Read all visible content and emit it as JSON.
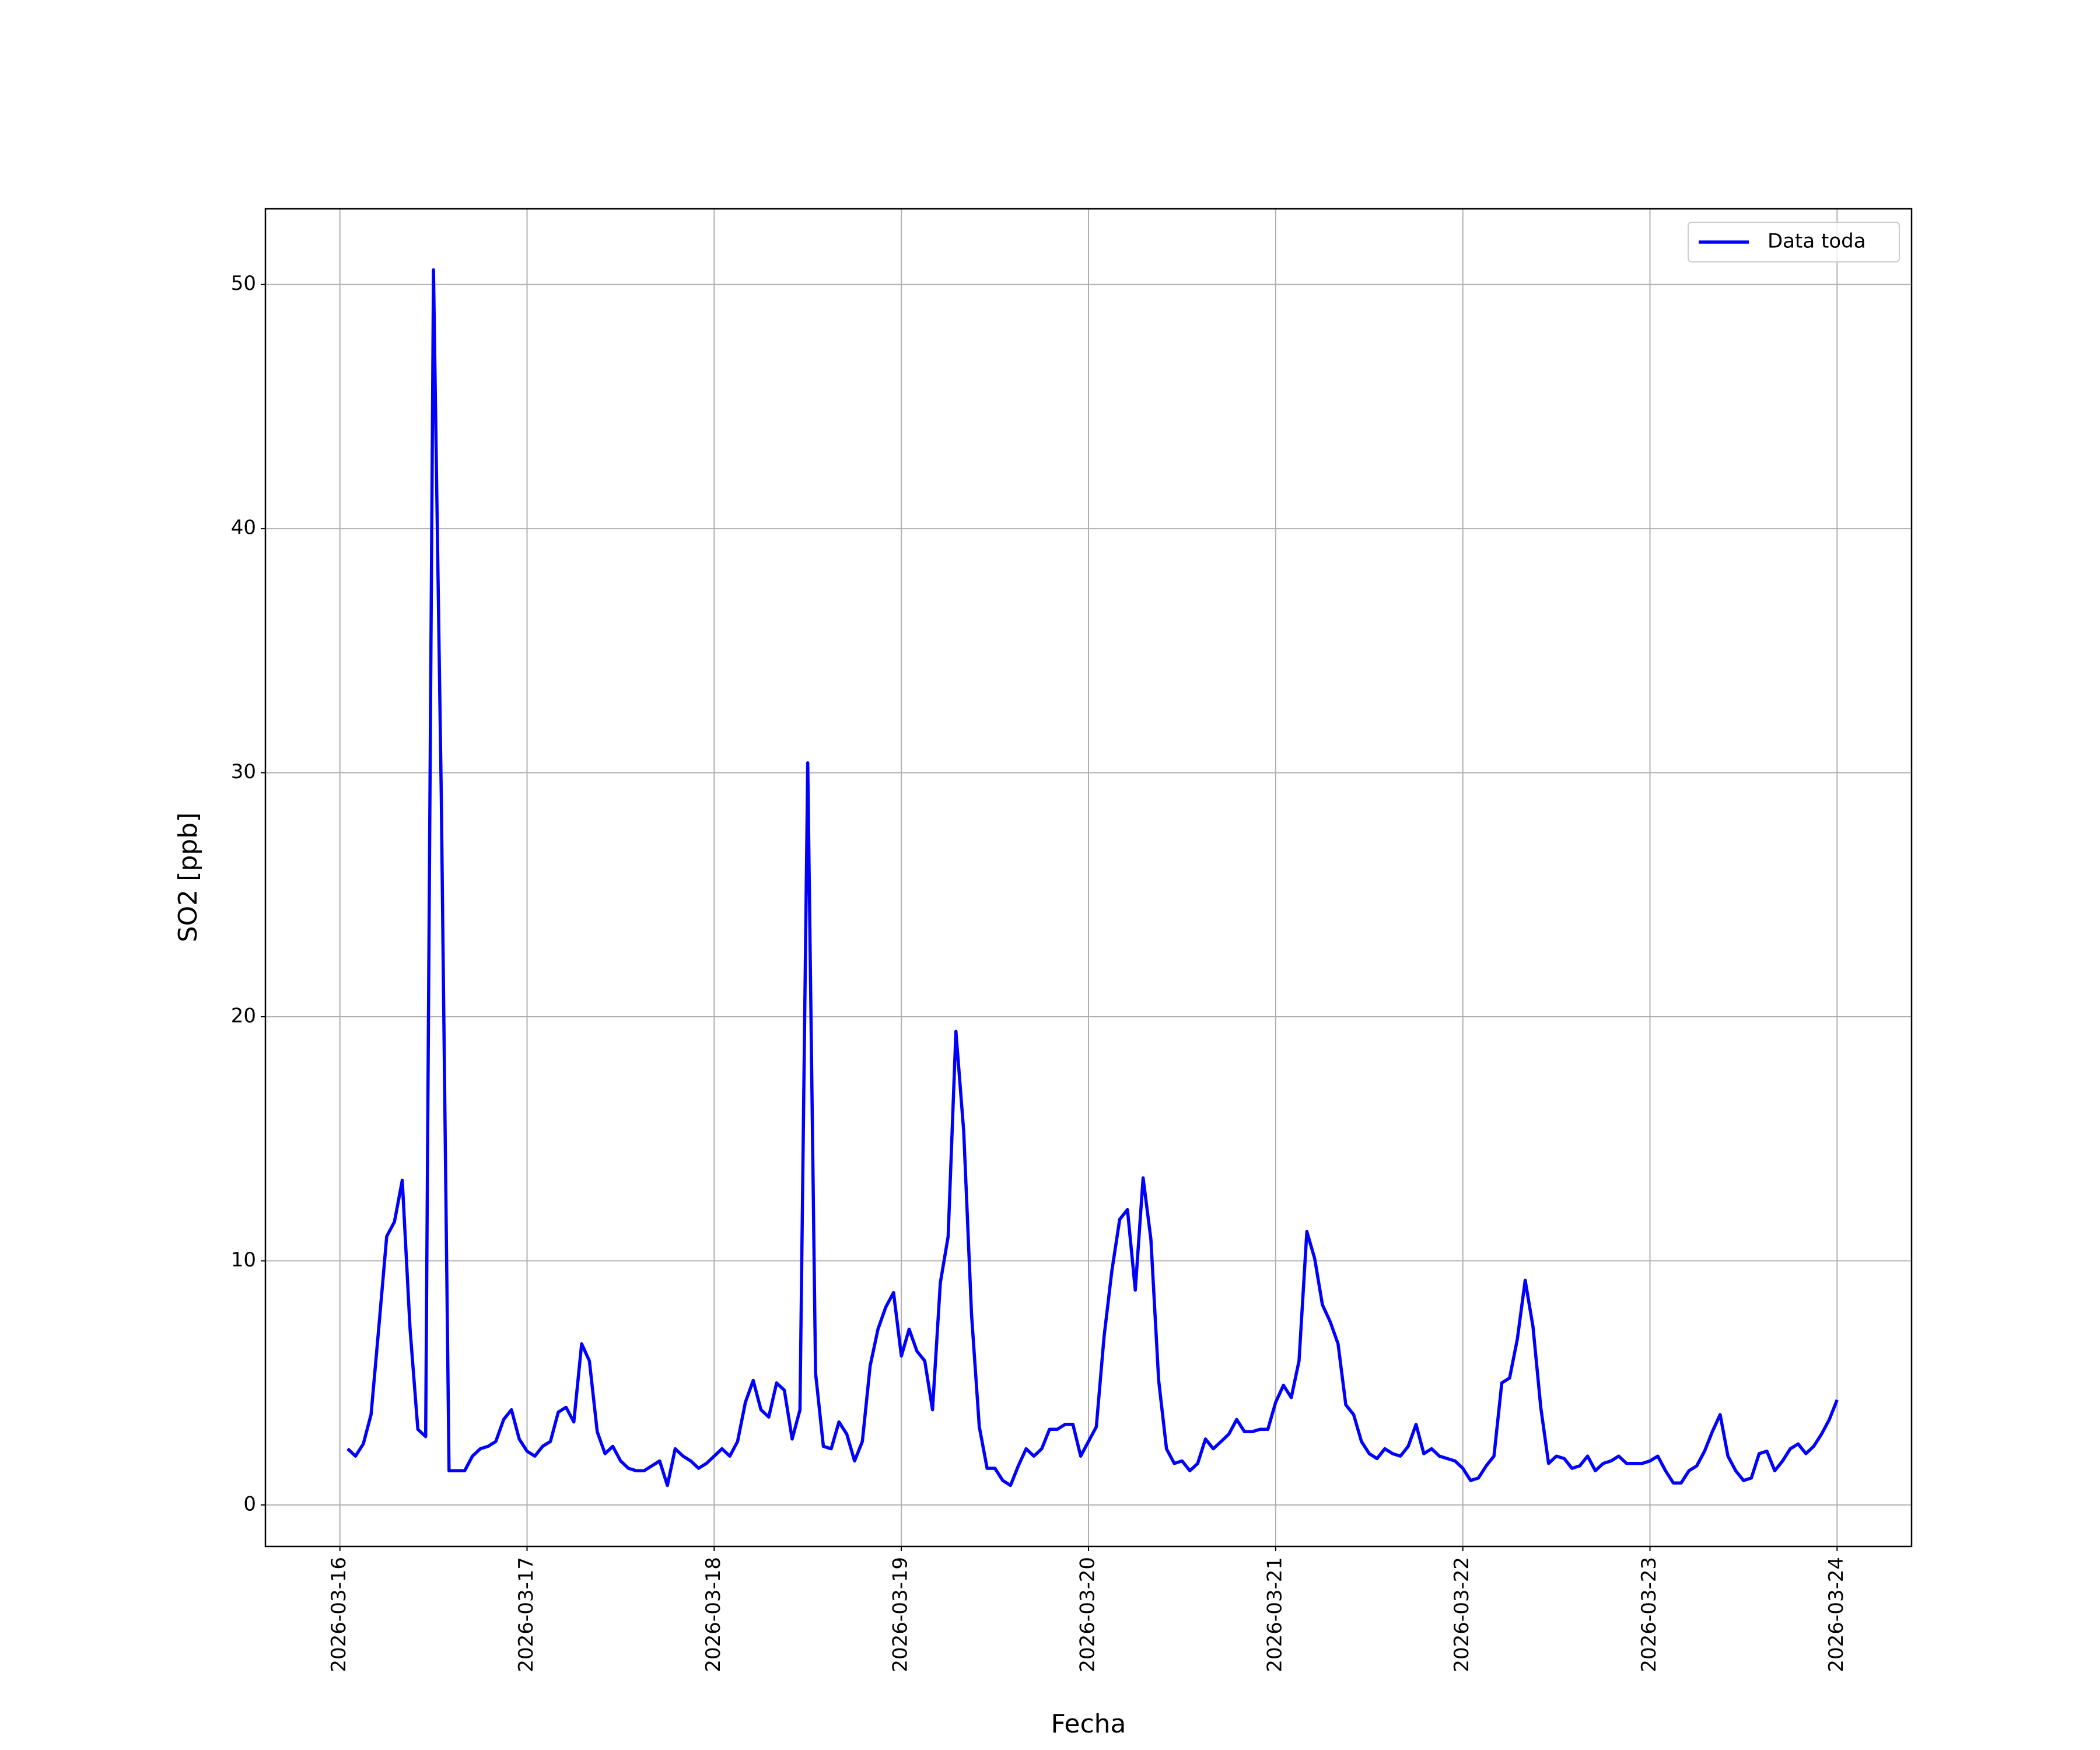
{
  "chart_data": {
    "type": "line",
    "xlabel": "Fecha",
    "ylabel": "SO2 [ppb]",
    "x": [
      "2026-03-16 01:00",
      "2026-03-16 02:00",
      "2026-03-16 03:00",
      "2026-03-16 04:00",
      "2026-03-16 05:00",
      "2026-03-16 06:00",
      "2026-03-16 07:00",
      "2026-03-16 08:00",
      "2026-03-16 09:00",
      "2026-03-16 10:00",
      "2026-03-16 11:00",
      "2026-03-16 12:00",
      "2026-03-16 13:00",
      "2026-03-16 14:00",
      "2026-03-16 15:00",
      "2026-03-16 16:00",
      "2026-03-16 17:00",
      "2026-03-16 18:00",
      "2026-03-16 19:00",
      "2026-03-16 20:00",
      "2026-03-16 21:00",
      "2026-03-16 22:00",
      "2026-03-16 23:00",
      "2026-03-17 00:00",
      "2026-03-17 01:00",
      "2026-03-17 02:00",
      "2026-03-17 03:00",
      "2026-03-17 04:00",
      "2026-03-17 05:00",
      "2026-03-17 06:00",
      "2026-03-17 07:00",
      "2026-03-17 08:00",
      "2026-03-17 09:00",
      "2026-03-17 10:00",
      "2026-03-17 11:00",
      "2026-03-17 12:00",
      "2026-03-17 13:00",
      "2026-03-17 14:00",
      "2026-03-17 15:00",
      "2026-03-17 16:00",
      "2026-03-17 17:00",
      "2026-03-17 18:00",
      "2026-03-17 19:00",
      "2026-03-17 20:00",
      "2026-03-17 21:00",
      "2026-03-17 22:00",
      "2026-03-17 23:00",
      "2026-03-18 00:00",
      "2026-03-18 01:00",
      "2026-03-18 02:00",
      "2026-03-18 03:00",
      "2026-03-18 04:00",
      "2026-03-18 05:00",
      "2026-03-18 06:00",
      "2026-03-18 07:00",
      "2026-03-18 08:00",
      "2026-03-18 09:00",
      "2026-03-18 10:00",
      "2026-03-18 11:00",
      "2026-03-18 12:00",
      "2026-03-18 13:00",
      "2026-03-18 14:00",
      "2026-03-18 15:00",
      "2026-03-18 16:00",
      "2026-03-18 17:00",
      "2026-03-18 18:00",
      "2026-03-18 19:00",
      "2026-03-18 20:00",
      "2026-03-18 21:00",
      "2026-03-18 22:00",
      "2026-03-18 23:00",
      "2026-03-19 00:00",
      "2026-03-19 01:00",
      "2026-03-19 02:00",
      "2026-03-19 03:00",
      "2026-03-19 04:00",
      "2026-03-19 05:00",
      "2026-03-19 06:00",
      "2026-03-19 07:00",
      "2026-03-19 08:00",
      "2026-03-19 09:00",
      "2026-03-19 10:00",
      "2026-03-19 11:00",
      "2026-03-19 12:00",
      "2026-03-19 13:00",
      "2026-03-19 14:00",
      "2026-03-19 15:00",
      "2026-03-19 16:00",
      "2026-03-19 17:00",
      "2026-03-19 18:00",
      "2026-03-19 19:00",
      "2026-03-19 20:00",
      "2026-03-19 21:00",
      "2026-03-19 22:00",
      "2026-03-19 23:00",
      "2026-03-20 00:00",
      "2026-03-20 01:00",
      "2026-03-20 02:00",
      "2026-03-20 03:00",
      "2026-03-20 04:00",
      "2026-03-20 05:00",
      "2026-03-20 06:00",
      "2026-03-20 07:00",
      "2026-03-20 08:00",
      "2026-03-20 09:00",
      "2026-03-20 10:00",
      "2026-03-20 11:00",
      "2026-03-20 12:00",
      "2026-03-20 13:00",
      "2026-03-20 14:00",
      "2026-03-20 15:00",
      "2026-03-20 16:00",
      "2026-03-20 17:00",
      "2026-03-20 18:00",
      "2026-03-20 19:00",
      "2026-03-20 20:00",
      "2026-03-20 21:00",
      "2026-03-20 22:00",
      "2026-03-20 23:00",
      "2026-03-21 00:00",
      "2026-03-21 01:00",
      "2026-03-21 02:00",
      "2026-03-21 03:00",
      "2026-03-21 04:00",
      "2026-03-21 05:00",
      "2026-03-21 06:00",
      "2026-03-21 07:00",
      "2026-03-21 08:00",
      "2026-03-21 09:00",
      "2026-03-21 10:00",
      "2026-03-21 11:00",
      "2026-03-21 12:00",
      "2026-03-21 13:00",
      "2026-03-21 14:00",
      "2026-03-21 15:00",
      "2026-03-21 16:00",
      "2026-03-21 17:00",
      "2026-03-21 18:00",
      "2026-03-21 19:00",
      "2026-03-21 20:00",
      "2026-03-21 21:00",
      "2026-03-21 22:00",
      "2026-03-21 23:00",
      "2026-03-22 00:00",
      "2026-03-22 01:00",
      "2026-03-22 02:00",
      "2026-03-22 03:00",
      "2026-03-22 04:00",
      "2026-03-22 05:00",
      "2026-03-22 06:00",
      "2026-03-22 07:00",
      "2026-03-22 08:00",
      "2026-03-22 09:00",
      "2026-03-22 10:00",
      "2026-03-22 11:00",
      "2026-03-22 12:00",
      "2026-03-22 13:00",
      "2026-03-22 14:00",
      "2026-03-22 15:00",
      "2026-03-22 16:00",
      "2026-03-22 17:00",
      "2026-03-22 18:00",
      "2026-03-22 19:00",
      "2026-03-22 20:00",
      "2026-03-22 21:00",
      "2026-03-22 22:00",
      "2026-03-22 23:00",
      "2026-03-23 00:00",
      "2026-03-23 01:00",
      "2026-03-23 02:00",
      "2026-03-23 03:00",
      "2026-03-23 04:00",
      "2026-03-23 05:00",
      "2026-03-23 06:00",
      "2026-03-23 07:00",
      "2026-03-23 08:00",
      "2026-03-23 09:00",
      "2026-03-23 10:00",
      "2026-03-23 11:00",
      "2026-03-23 12:00",
      "2026-03-23 13:00",
      "2026-03-23 14:00",
      "2026-03-23 15:00",
      "2026-03-23 16:00",
      "2026-03-23 17:00",
      "2026-03-23 18:00",
      "2026-03-23 19:00",
      "2026-03-23 20:00",
      "2026-03-23 21:00",
      "2026-03-23 22:00",
      "2026-03-23 23:00",
      "2026-03-24 00:00"
    ],
    "series": [
      {
        "name": "Data toda",
        "color": "#0000ff",
        "values": [
          2.3,
          2.0,
          2.5,
          3.7,
          7.3,
          11.0,
          11.6,
          13.3,
          7.2,
          3.1,
          2.8,
          50.6,
          29,
          1.4,
          1.4,
          1.4,
          2.0,
          2.3,
          2.4,
          2.6,
          3.5,
          3.9,
          2.7,
          2.2,
          2.0,
          2.4,
          2.6,
          3.8,
          4.0,
          3.4,
          6.6,
          5.9,
          3.0,
          2.1,
          2.4,
          1.8,
          1.5,
          1.4,
          1.4,
          1.6,
          1.8,
          0.8,
          2.3,
          2.0,
          1.8,
          1.5,
          1.7,
          2.0,
          2.3,
          2.0,
          2.6,
          4.2,
          5.1,
          3.9,
          3.6,
          5.0,
          4.7,
          2.7,
          3.9,
          30.4,
          5.4,
          2.4,
          2.3,
          3.4,
          2.9,
          1.8,
          2.6,
          5.7,
          7.2,
          8.1,
          8.7,
          6.1,
          7.2,
          6.3,
          5.9,
          3.9,
          9.1,
          11.0,
          19.4,
          15.3,
          7.8,
          3.2,
          1.5,
          1.5,
          1.0,
          0.8,
          1.6,
          2.3,
          2.0,
          2.3,
          3.1,
          3.1,
          3.3,
          3.3,
          2.0,
          2.6,
          3.2,
          6.9,
          9.6,
          11.7,
          12.1,
          8.8,
          13.4,
          10.9,
          5.1,
          2.3,
          1.7,
          1.8,
          1.4,
          1.7,
          2.7,
          2.3,
          2.6,
          2.9,
          3.5,
          3.0,
          3.0,
          3.1,
          3.1,
          4.2,
          4.9,
          4.4,
          5.9,
          11.2,
          10.1,
          8.2,
          7.5,
          6.6,
          4.1,
          3.7,
          2.6,
          2.1,
          1.9,
          2.3,
          2.1,
          2.0,
          2.4,
          3.3,
          2.1,
          2.3,
          2.0,
          1.9,
          1.8,
          1.5,
          1.0,
          1.1,
          1.6,
          2.0,
          5.0,
          5.2,
          6.8,
          9.2,
          7.3,
          4.0,
          1.7,
          2.0,
          1.9,
          1.5,
          1.6,
          2.0,
          1.4,
          1.7,
          1.8,
          2.0,
          1.7,
          1.7,
          1.7,
          1.8,
          2.0,
          1.4,
          0.9,
          0.9,
          1.4,
          1.6,
          2.2,
          3.0,
          3.7,
          2.0,
          1.4,
          1.0,
          1.1,
          2.1,
          2.2,
          1.4,
          1.8,
          2.3,
          2.5,
          2.1,
          2.4,
          2.9,
          3.5,
          4.3
        ]
      }
    ],
    "xlim": [
      "2026-03-15 14:27",
      "2026-03-24 09:33"
    ],
    "xticks": [
      "2026-03-16",
      "2026-03-17",
      "2026-03-18",
      "2026-03-19",
      "2026-03-20",
      "2026-03-21",
      "2026-03-22",
      "2026-03-23",
      "2026-03-24"
    ],
    "ylim": [
      -1.7,
      53.1
    ],
    "yticks": [
      0,
      10,
      20,
      30,
      40,
      50
    ],
    "grid": true,
    "legend": "upper right"
  }
}
